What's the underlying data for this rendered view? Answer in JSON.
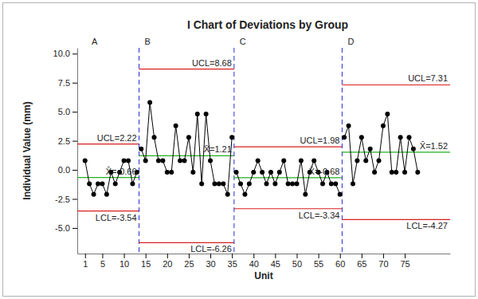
{
  "chart_data": {
    "type": "control_chart",
    "title": "I Chart of Deviations by Group",
    "x_label": "Unit",
    "y_label": "Individual Value (mm)",
    "color": "#000000",
    "marker": "circle",
    "line_style": "solid",
    "x": [
      1,
      2,
      3,
      4,
      5,
      6,
      7,
      8,
      9,
      10,
      11,
      12,
      13,
      14,
      15,
      16,
      17,
      18,
      19,
      20,
      21,
      22,
      23,
      24,
      25,
      26,
      27,
      28,
      29,
      30,
      31,
      32,
      33,
      34,
      35,
      36,
      37,
      38,
      39,
      40,
      41,
      42,
      43,
      44,
      45,
      46,
      47,
      48,
      49,
      50,
      51,
      52,
      53,
      54,
      55,
      56,
      57,
      58,
      59,
      60,
      61,
      62,
      63,
      64,
      65,
      66,
      67,
      68,
      69,
      70,
      71,
      72,
      73,
      74,
      75,
      76,
      77,
      78
    ],
    "values": [
      0.8,
      -1.2,
      -2.1,
      -1.2,
      -1.2,
      -2.1,
      -0.2,
      -1.2,
      -0.2,
      0.8,
      0.8,
      -1.2,
      -0.2,
      1.8,
      0.8,
      5.8,
      2.8,
      0.8,
      0.8,
      -0.2,
      -0.2,
      3.8,
      0.8,
      0.8,
      2.8,
      -0.2,
      4.8,
      -1.2,
      4.8,
      0.8,
      -1.2,
      -1.2,
      -1.2,
      -2.1,
      2.8,
      -0.2,
      -1.2,
      -2.1,
      -1.2,
      -0.2,
      0.8,
      -0.2,
      -1.2,
      -0.2,
      -1.2,
      -0.2,
      0.8,
      -1.2,
      -1.2,
      -1.2,
      0.8,
      -2.1,
      -0.2,
      0.8,
      -0.2,
      -1.2,
      -0.2,
      -1.2,
      -1.2,
      -2.1,
      2.8,
      3.8,
      -1.2,
      0.8,
      2.8,
      0.8,
      1.8,
      -0.2,
      0.8,
      3.8,
      4.8,
      -0.2,
      -0.2,
      2.8,
      -0.2,
      2.8,
      1.8,
      -0.2
    ],
    "xlim": [
      -0.8,
      85.5
    ],
    "xticks": [
      1,
      5,
      10,
      15,
      20,
      25,
      30,
      35,
      40,
      45,
      50,
      55,
      60,
      65,
      70,
      75
    ],
    "ylim": [
      -7.2,
      10.5
    ],
    "yticks": [
      {
        "value": -5,
        "label": "-5.0"
      },
      {
        "value": -2.5,
        "label": "-2.5"
      },
      {
        "value": 0,
        "label": "0.0"
      },
      {
        "value": 2.5,
        "label": "2.5"
      },
      {
        "value": 5,
        "label": "5.0"
      },
      {
        "value": 7.5,
        "label": "7.5"
      },
      {
        "value": 10,
        "label": "10.0"
      }
    ],
    "stages": [
      {
        "label": "A",
        "first": 1,
        "last": 13,
        "ucl": 2.22,
        "ucl_label": "UCL=2.22",
        "mean": -0.66,
        "mean_label": "X̄=-0.66",
        "lcl": -3.54,
        "lcl_label": "LCL=-3.54"
      },
      {
        "label": "B",
        "first": 14,
        "last": 35,
        "ucl": 8.68,
        "ucl_label": "UCL=8.68",
        "mean": 1.21,
        "mean_label": "X̄=1.21",
        "lcl": -6.26,
        "lcl_label": "LCL=-6.26"
      },
      {
        "label": "C",
        "first": 36,
        "last": 60,
        "ucl": 1.98,
        "ucl_label": "UCL=1.98",
        "mean": -0.68,
        "mean_label": "X̄=-0.68",
        "lcl": -3.34,
        "lcl_label": "LCL=-3.34"
      },
      {
        "label": "D",
        "first": 61,
        "last": 78,
        "ucl": 7.31,
        "ucl_label": "UCL=7.31",
        "mean": 1.52,
        "mean_label": "X̄=1.52",
        "lcl": -4.27,
        "lcl_label": "LCL=-4.27"
      }
    ]
  }
}
